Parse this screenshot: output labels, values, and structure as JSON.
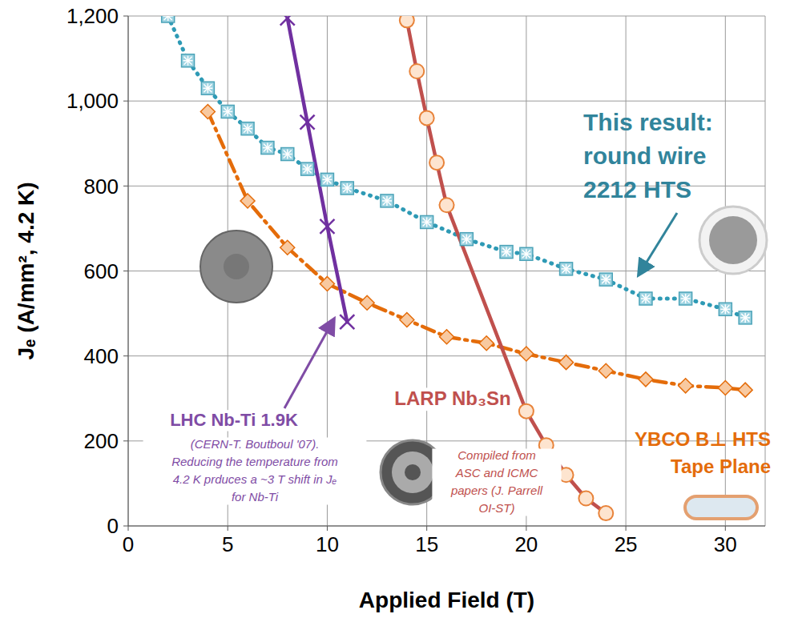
{
  "chart_data": {
    "type": "line",
    "x_label": "Applied Field (T)",
    "y_label": "Jₑ (A/mm², 4.2 K)",
    "xlim": [
      0,
      32
    ],
    "xticks": [
      0,
      5,
      10,
      15,
      20,
      25,
      30
    ],
    "ylim": [
      0,
      1200
    ],
    "yticks": [
      0,
      200,
      400,
      600,
      800,
      {
        "value": 1000,
        "label": "1,000"
      },
      {
        "value": 1200,
        "label": "1,200"
      }
    ],
    "grid": true,
    "series": [
      {
        "color": "#2e9ab5",
        "marker": "square",
        "line_style": "dotted",
        "x": [
          2,
          3,
          4,
          5,
          6,
          7,
          8,
          9,
          10,
          11,
          13,
          15,
          17,
          19,
          20,
          22,
          24,
          26,
          28,
          30,
          31
        ],
        "values": [
          1200,
          1095,
          1030,
          975,
          935,
          890,
          875,
          840,
          815,
          795,
          765,
          715,
          675,
          645,
          640,
          605,
          580,
          535,
          535,
          510,
          490
        ]
      },
      {
        "color": "#e46c0a",
        "marker": "diamond",
        "line_style": "dashdot",
        "x": [
          4,
          6,
          8,
          10,
          12,
          14,
          16,
          18,
          20,
          22,
          24,
          26,
          28,
          30,
          31
        ],
        "values": [
          975,
          765,
          655,
          570,
          525,
          485,
          445,
          430,
          405,
          385,
          365,
          345,
          330,
          325,
          320
        ]
      },
      {
        "color": "#7030a0",
        "marker": "x",
        "line_style": "solid",
        "x": [
          8,
          9,
          10,
          11
        ],
        "values": [
          1195,
          950,
          705,
          480
        ]
      },
      {
        "color": "#c0504d",
        "marker": "circle",
        "line_style": "solid",
        "x": [
          14,
          14.5,
          15,
          15.5,
          16,
          20,
          21,
          22,
          23,
          24
        ],
        "values": [
          1190,
          1070,
          960,
          855,
          755,
          270,
          190,
          120,
          65,
          30
        ]
      }
    ],
    "annotations": [
      {
        "text": "This result:\nround wire\n2212 HTS",
        "color": "#31849b"
      },
      {
        "text": "LHC Nb-Ti 1.9K",
        "color": "#7f4ca5"
      },
      {
        "text": "(CERN-T. Boutboul '07).\nReducing the temperature from\n4.2 K prduces a ~3 T shift in Jₑ\nfor Nb-Ti",
        "color": "#7f4ca5"
      },
      {
        "text": "LARP Nb₃Sn",
        "color": "#c0504d"
      },
      {
        "text": "Compiled from\nASC and ICMC\npapers (J. Parrell\nOI-ST)",
        "color": "#c0504d"
      },
      {
        "text": "YBCO B⊥ HTS\nTape Plane",
        "color": "#e46c0a"
      }
    ]
  }
}
